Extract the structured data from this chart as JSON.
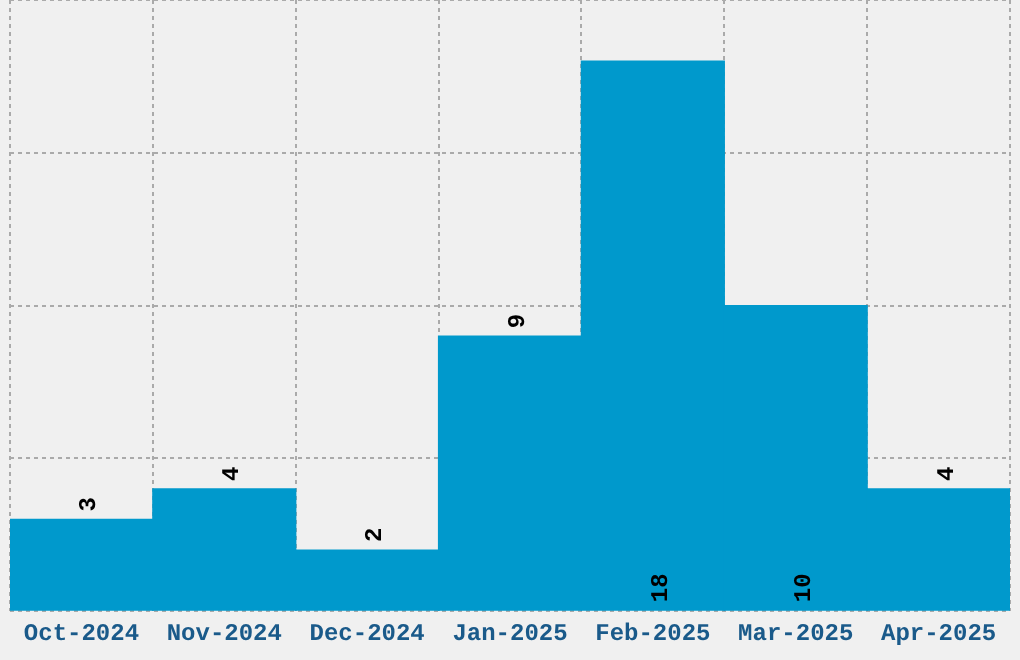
{
  "chart_data": {
    "type": "bar",
    "categories": [
      "Oct-2024",
      "Nov-2024",
      "Dec-2024",
      "Jan-2025",
      "Feb-2025",
      "Mar-2025",
      "Apr-2025"
    ],
    "values": [
      3,
      4,
      2,
      9,
      18,
      10,
      4
    ],
    "color": "#0099cc",
    "ylim": [
      0,
      20
    ],
    "yticks": [
      {
        "value": 0,
        "label": null
      },
      {
        "value": 5,
        "label": null
      },
      {
        "value": 10,
        "label": null
      },
      {
        "value": 15,
        "label": null
      },
      {
        "value": 20,
        "label": null
      }
    ],
    "grid": true,
    "tick_labels": "x",
    "data_labels": true
  }
}
